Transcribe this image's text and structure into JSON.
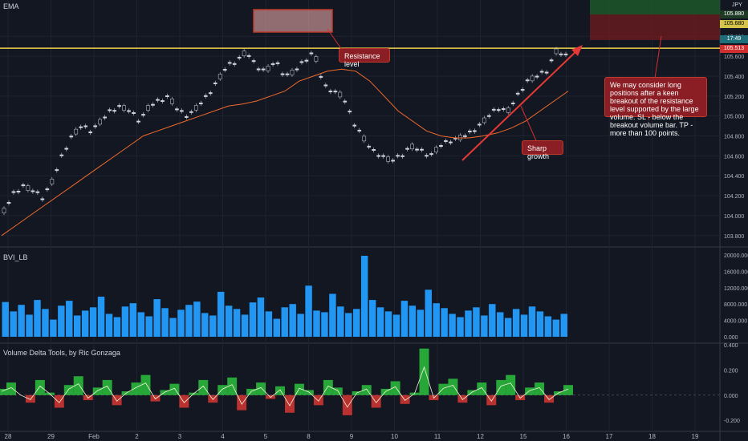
{
  "main_indicator_label": "EMA",
  "currency": "JPY",
  "chart_data": [
    {
      "type": "line",
      "pane": "price",
      "ylim": [
        103.75,
        106.1
      ],
      "x_tick_labels": [
        "28",
        "29",
        "Feb",
        "2",
        "3",
        "4",
        "5",
        "8",
        "9",
        "10",
        "11",
        "12",
        "15",
        "16",
        "17",
        "18",
        "19"
      ],
      "y_tick_labels": [
        "103.800",
        "104.000",
        "104.200",
        "104.400",
        "104.600",
        "104.800",
        "105.000",
        "105.200",
        "105.400",
        "105.600",
        "105.800"
      ],
      "price_tags": [
        {
          "label": "105.880",
          "color": "#1e3a24"
        },
        {
          "label": "105.680",
          "color": "#d5c44a"
        },
        {
          "label": "17:49",
          "color": "#1f6f7a"
        },
        {
          "label": "105.513",
          "color": "#d12f2f"
        }
      ],
      "resistance_level": 105.68,
      "series": [
        {
          "values": [
            104.05,
            104.22,
            104.3,
            104.25,
            104.18,
            104.35,
            104.6,
            104.8,
            104.9,
            104.85,
            104.95,
            105.05,
            105.1,
            105.05,
            104.95,
            105.1,
            105.15,
            105.2,
            105.05,
            105.0,
            105.1,
            105.2,
            105.35,
            105.5,
            105.55,
            105.65,
            105.5,
            105.45,
            105.55,
            105.4,
            105.45,
            105.55,
            105.65,
            105.3,
            105.25,
            105.2,
            104.95,
            104.8,
            104.65,
            104.6,
            104.55,
            104.6,
            104.7,
            104.65,
            104.6,
            104.7,
            104.75,
            104.78,
            104.82,
            104.9,
            105.0,
            105.08,
            105.05,
            105.2,
            105.35,
            105.4,
            105.45,
            105.65,
            105.6
          ]
        },
        {
          "color": "#f06a2c",
          "values": [
            103.8,
            103.9,
            104.0,
            104.1,
            104.2,
            104.3,
            104.4,
            104.5,
            104.6,
            104.7,
            104.8,
            104.85,
            104.9,
            104.95,
            105.0,
            105.05,
            105.1,
            105.12,
            105.15,
            105.2,
            105.25,
            105.35,
            105.4,
            105.45,
            105.47,
            105.45,
            105.35,
            105.2,
            105.05,
            104.95,
            104.85,
            104.8,
            104.78,
            104.78,
            104.8,
            104.83,
            104.88,
            104.95,
            105.05,
            105.15,
            105.25
          ]
        }
      ]
    },
    {
      "type": "bar",
      "pane": "volume",
      "title": "BVI_LB",
      "ylim": [
        0,
        20000
      ],
      "y_tick_labels": [
        "20000.000",
        "16000.000",
        "12000.000",
        "8000.000",
        "4000.000",
        "0.000"
      ],
      "values": [
        8500,
        6200,
        7800,
        5400,
        9000,
        6800,
        4200,
        7600,
        8800,
        5200,
        6400,
        7200,
        9800,
        5600,
        4800,
        7400,
        8200,
        6000,
        5000,
        9200,
        7000,
        4600,
        6600,
        7800,
        8600,
        5800,
        5200,
        11000,
        7600,
        6800,
        5400,
        8400,
        9600,
        6200,
        4400,
        7200,
        8000,
        5600,
        12500,
        6400,
        6000,
        10500,
        7400,
        5800,
        6800,
        19800,
        9000,
        7200,
        6200,
        5400,
        8800,
        7600,
        6600,
        11500,
        8200,
        7000,
        5600,
        4800,
        6400,
        7200,
        5200,
        8000,
        6000,
        4600,
        6800,
        5400,
        7400,
        6200,
        5000,
        4200,
        5600
      ]
    },
    {
      "type": "line",
      "pane": "delta",
      "title": "Volume Delta Tools, by Ric Gonzaga",
      "ylim": [
        -0.25,
        0.4
      ],
      "y_tick_labels": [
        "0.400",
        "0.200",
        "0.000",
        "-0.200"
      ],
      "values": [
        0.05,
        0.1,
        0.0,
        -0.06,
        0.12,
        0.02,
        -0.1,
        0.08,
        0.15,
        -0.04,
        0.06,
        0.12,
        -0.08,
        0.03,
        0.1,
        0.16,
        -0.05,
        0.04,
        0.09,
        -0.1,
        0.02,
        0.12,
        -0.06,
        0.08,
        0.14,
        -0.12,
        0.05,
        0.1,
        -0.03,
        0.07,
        -0.14,
        0.09,
        0.04,
        -0.08,
        0.12,
        0.06,
        -0.16,
        0.03,
        0.08,
        -0.1,
        0.05,
        0.11,
        -0.07,
        0.02,
        0.37,
        -0.04,
        0.09,
        0.13,
        -0.06,
        0.04,
        0.1,
        -0.08,
        0.12,
        0.16,
        -0.04,
        0.06,
        0.1,
        -0.06,
        0.03,
        0.08
      ]
    }
  ],
  "annotations": {
    "resistance": "Resistance level",
    "growth": "Sharp growth",
    "idea": "We may consider long positions after a keen breakout of the resistance level supported by the large volume. SL - below the breakout volume bar. TP - more than 100 points."
  }
}
